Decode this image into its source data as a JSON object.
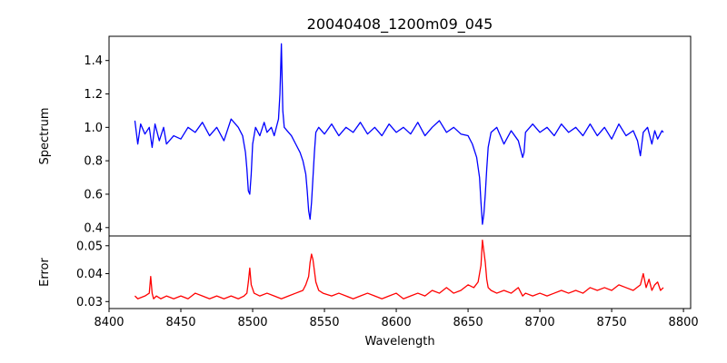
{
  "chart_data": [
    {
      "type": "line",
      "title": "20040408_1200m09_045",
      "xlabel": "",
      "ylabel": "Spectrum",
      "xlim": [
        8400,
        8805
      ],
      "ylim": [
        0.35,
        1.545
      ],
      "yticks": [
        "0.4",
        "0.6",
        "0.8",
        "1.0",
        "1.2",
        "1.4"
      ],
      "xticks": [],
      "grid": false,
      "series": [
        {
          "color": "#0000ff",
          "x": [
            8418,
            8420,
            8422,
            8425,
            8428,
            8430,
            8432,
            8435,
            8438,
            8440,
            8445,
            8450,
            8455,
            8460,
            8465,
            8470,
            8475,
            8480,
            8485,
            8490,
            8493,
            8495,
            8496,
            8497,
            8498,
            8499,
            8500,
            8502,
            8505,
            8508,
            8510,
            8513,
            8515,
            8518,
            8519,
            8520,
            8521,
            8522,
            8524,
            8527,
            8530,
            8533,
            8535,
            8537,
            8538,
            8539,
            8540,
            8541,
            8542,
            8543,
            8544,
            8546,
            8550,
            8555,
            8560,
            8565,
            8570,
            8575,
            8580,
            8585,
            8590,
            8595,
            8600,
            8605,
            8610,
            8615,
            8620,
            8625,
            8630,
            8635,
            8640,
            8645,
            8650,
            8653,
            8656,
            8658,
            8659,
            8660,
            8661,
            8662,
            8663,
            8664,
            8666,
            8670,
            8675,
            8680,
            8685,
            8688,
            8689,
            8690,
            8695,
            8700,
            8705,
            8710,
            8715,
            8720,
            8725,
            8730,
            8735,
            8740,
            8745,
            8750,
            8755,
            8760,
            8765,
            8768,
            8770,
            8772,
            8775,
            8778,
            8780,
            8782,
            8785,
            8786
          ],
          "y": [
            1.04,
            0.9,
            1.02,
            0.96,
            1.0,
            0.88,
            1.02,
            0.92,
            1.0,
            0.9,
            0.95,
            0.93,
            1.0,
            0.97,
            1.03,
            0.95,
            1.0,
            0.92,
            1.05,
            1.0,
            0.95,
            0.85,
            0.75,
            0.62,
            0.6,
            0.72,
            0.9,
            1.0,
            0.95,
            1.03,
            0.97,
            1.0,
            0.95,
            1.05,
            1.2,
            1.5,
            1.1,
            1.0,
            0.98,
            0.95,
            0.9,
            0.85,
            0.8,
            0.72,
            0.62,
            0.5,
            0.45,
            0.55,
            0.7,
            0.85,
            0.97,
            1.0,
            0.96,
            1.02,
            0.95,
            1.0,
            0.97,
            1.03,
            0.96,
            1.0,
            0.95,
            1.02,
            0.97,
            1.0,
            0.96,
            1.03,
            0.95,
            1.0,
            1.04,
            0.97,
            1.0,
            0.96,
            0.95,
            0.9,
            0.82,
            0.7,
            0.55,
            0.42,
            0.48,
            0.6,
            0.75,
            0.88,
            0.97,
            1.0,
            0.9,
            0.98,
            0.92,
            0.82,
            0.85,
            0.97,
            1.02,
            0.97,
            1.0,
            0.95,
            1.02,
            0.97,
            1.0,
            0.95,
            1.02,
            0.95,
            1.0,
            0.93,
            1.02,
            0.95,
            0.98,
            0.92,
            0.83,
            0.97,
            1.0,
            0.9,
            0.98,
            0.93,
            0.98,
            0.97
          ]
        }
      ]
    },
    {
      "type": "line",
      "title": "",
      "xlabel": "Wavelength",
      "ylabel": "Error",
      "xlim": [
        8400,
        8805
      ],
      "ylim": [
        0.0275,
        0.0535
      ],
      "yticks": [
        "0.03",
        "0.04",
        "0.05"
      ],
      "xticks": [
        "8400",
        "8450",
        "8500",
        "8550",
        "8600",
        "8650",
        "8700",
        "8750",
        "8800"
      ],
      "grid": false,
      "series": [
        {
          "color": "#ff0000",
          "x": [
            8418,
            8420,
            8425,
            8428,
            8429,
            8430,
            8431,
            8433,
            8436,
            8440,
            8445,
            8450,
            8455,
            8460,
            8465,
            8470,
            8475,
            8480,
            8485,
            8490,
            8494,
            8496,
            8497,
            8498,
            8499,
            8501,
            8505,
            8510,
            8515,
            8520,
            8525,
            8530,
            8535,
            8537,
            8539,
            8540,
            8541,
            8542,
            8543,
            8544,
            8546,
            8549,
            8555,
            8560,
            8565,
            8570,
            8575,
            8580,
            8585,
            8590,
            8595,
            8600,
            8605,
            8610,
            8615,
            8620,
            8625,
            8630,
            8635,
            8640,
            8645,
            8650,
            8654,
            8657,
            8659,
            8660,
            8661,
            8662,
            8663,
            8664,
            8666,
            8670,
            8675,
            8680,
            8685,
            8688,
            8690,
            8695,
            8700,
            8705,
            8710,
            8715,
            8720,
            8725,
            8730,
            8735,
            8740,
            8745,
            8750,
            8755,
            8760,
            8765,
            8770,
            8772,
            8774,
            8776,
            8778,
            8780,
            8782,
            8784,
            8786
          ],
          "y": [
            0.032,
            0.031,
            0.032,
            0.033,
            0.039,
            0.033,
            0.031,
            0.032,
            0.031,
            0.032,
            0.031,
            0.032,
            0.031,
            0.033,
            0.032,
            0.031,
            0.032,
            0.031,
            0.032,
            0.031,
            0.032,
            0.033,
            0.037,
            0.042,
            0.036,
            0.033,
            0.032,
            0.033,
            0.032,
            0.031,
            0.032,
            0.033,
            0.034,
            0.036,
            0.039,
            0.044,
            0.047,
            0.045,
            0.041,
            0.037,
            0.034,
            0.033,
            0.032,
            0.033,
            0.032,
            0.031,
            0.032,
            0.033,
            0.032,
            0.031,
            0.032,
            0.033,
            0.031,
            0.032,
            0.033,
            0.032,
            0.034,
            0.033,
            0.035,
            0.033,
            0.034,
            0.036,
            0.035,
            0.037,
            0.043,
            0.052,
            0.048,
            0.044,
            0.038,
            0.035,
            0.034,
            0.033,
            0.034,
            0.033,
            0.035,
            0.032,
            0.033,
            0.032,
            0.033,
            0.032,
            0.033,
            0.034,
            0.033,
            0.034,
            0.033,
            0.035,
            0.034,
            0.035,
            0.034,
            0.036,
            0.035,
            0.034,
            0.036,
            0.04,
            0.035,
            0.038,
            0.034,
            0.036,
            0.037,
            0.034,
            0.035
          ]
        }
      ]
    }
  ]
}
